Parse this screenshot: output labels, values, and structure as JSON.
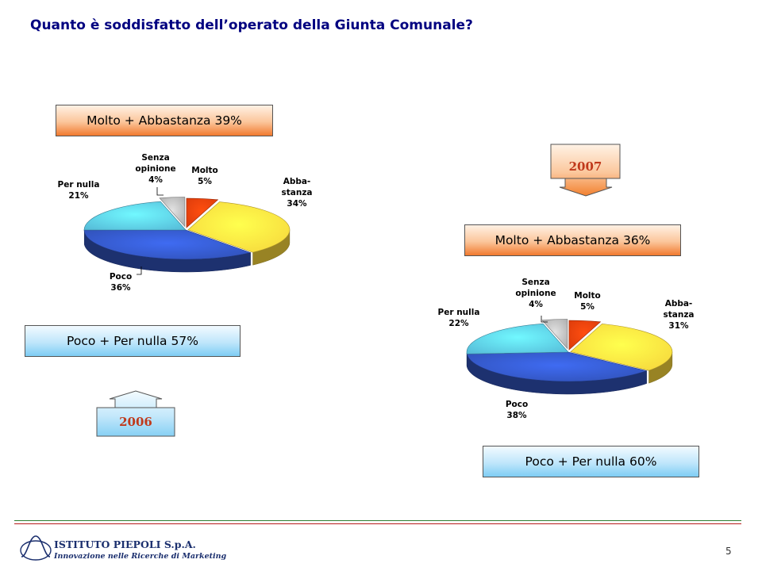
{
  "title": "Quanto è soddisfatto dell’operato della Giunta Comunale?",
  "chart_data": [
    {
      "type": "pie",
      "year": "2006",
      "summary_top": "Molto + Abbastanza 39%",
      "summary_bottom": "Poco + Per nulla 57%",
      "slices": [
        {
          "label": [
            "Molto"
          ],
          "value": 5,
          "value_text": "5%",
          "color": "#d93a0b"
        },
        {
          "label": [
            "Abba-",
            "stanza"
          ],
          "value": 34,
          "value_text": "34%",
          "color": "#f5d33a"
        },
        {
          "label": [
            "Poco"
          ],
          "value": 36,
          "value_text": "36%",
          "color": "#2f4fb3"
        },
        {
          "label": [
            "Per nulla"
          ],
          "value": 21,
          "value_text": "21%",
          "color": "#54b8d6"
        },
        {
          "label": [
            "Senza",
            "opinione"
          ],
          "value": 4,
          "value_text": "4%",
          "color": "#a8a8a8"
        }
      ]
    },
    {
      "type": "pie",
      "year": "2007",
      "summary_top": "Molto + Abbastanza 36%",
      "summary_bottom": "Poco + Per nulla 60%",
      "slices": [
        {
          "label": [
            "Molto"
          ],
          "value": 5,
          "value_text": "5%",
          "color": "#d93a0b"
        },
        {
          "label": [
            "Abba-",
            "stanza"
          ],
          "value": 31,
          "value_text": "31%",
          "color": "#f5d33a"
        },
        {
          "label": [
            "Poco"
          ],
          "value": 38,
          "value_text": "38%",
          "color": "#2f4fb3"
        },
        {
          "label": [
            "Per nulla"
          ],
          "value": 22,
          "value_text": "22%",
          "color": "#54b8d6"
        },
        {
          "label": [
            "Senza",
            "opinione"
          ],
          "value": 4,
          "value_text": "4%",
          "color": "#a8a8a8"
        }
      ]
    }
  ],
  "footer": {
    "company": "ISTITUTO PIEPOLI  S.p.A.",
    "tagline": "Innovazione nelle Ricerche di Marketing",
    "page": "5"
  }
}
